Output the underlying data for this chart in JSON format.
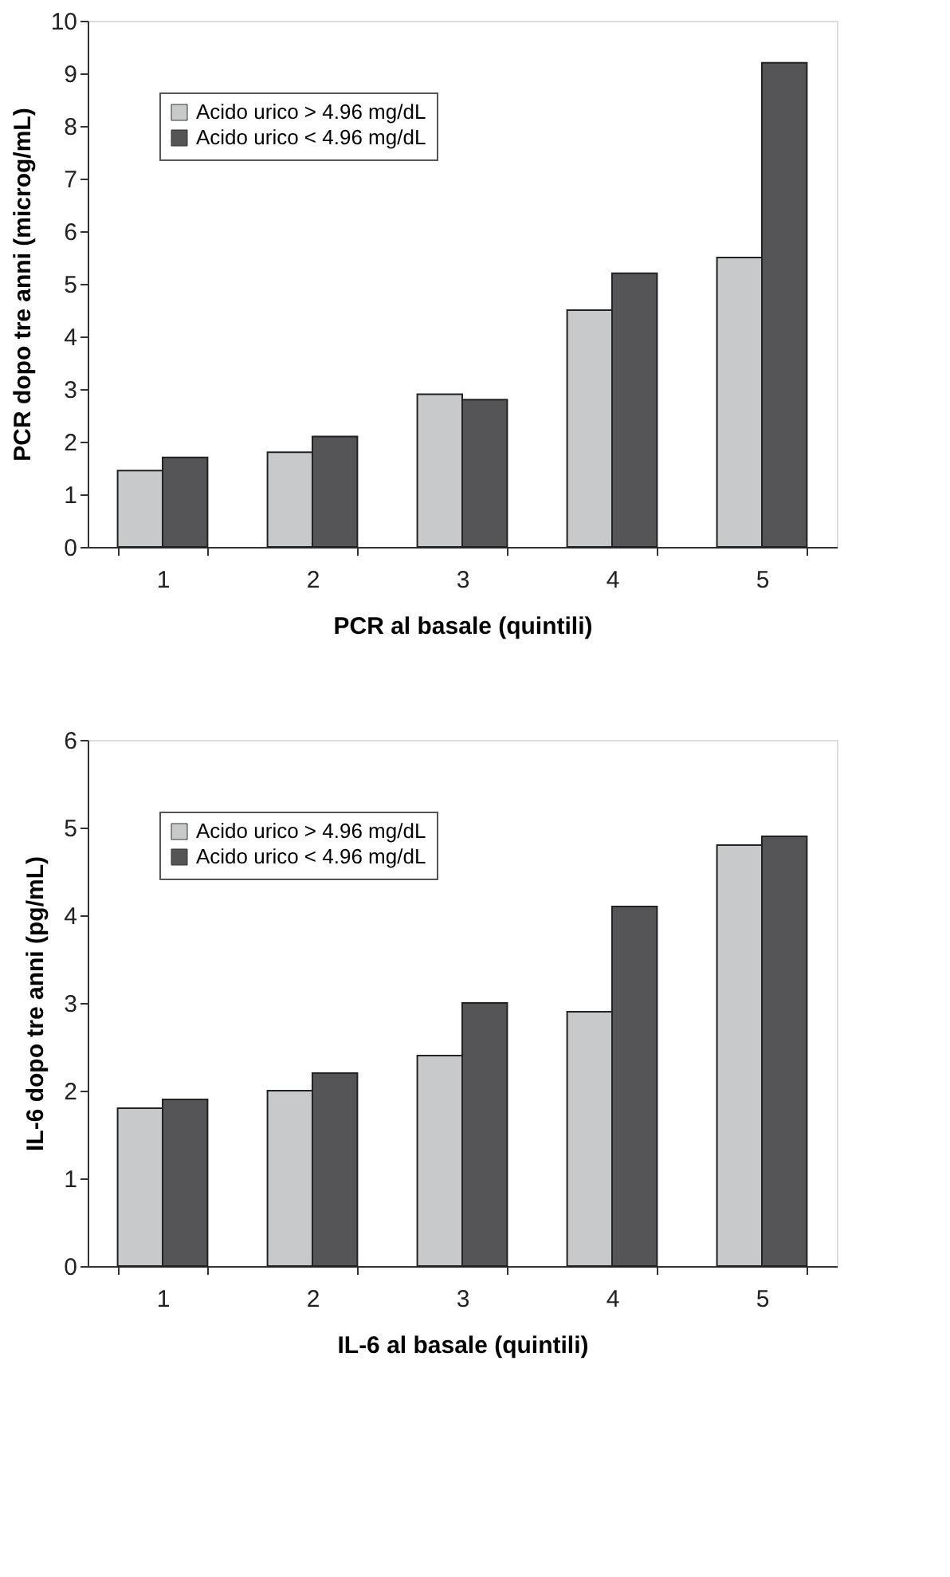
{
  "chart_data": [
    {
      "type": "bar",
      "xlabel": "PCR al basale (quintili)",
      "ylabel": "PCR dopo tre anni (microg/mL)",
      "categories": [
        "1",
        "2",
        "3",
        "4",
        "5"
      ],
      "ylim": [
        0,
        10
      ],
      "yticks": [
        0,
        1,
        2,
        3,
        4,
        5,
        6,
        7,
        8,
        9,
        10
      ],
      "legend": "top left",
      "grid": false,
      "series": [
        {
          "name": "Acido urico > 4.96 mg/dL",
          "color": "#c8c9cb",
          "values": [
            1.45,
            1.8,
            2.9,
            4.5,
            5.5
          ]
        },
        {
          "name": "Acido urico < 4.96 mg/dL",
          "color": "#555557",
          "values": [
            1.7,
            2.1,
            2.8,
            5.2,
            9.2
          ]
        }
      ]
    },
    {
      "type": "bar",
      "xlabel": "IL-6 al basale (quintili)",
      "ylabel": "IL-6 dopo tre anni (pg/mL)",
      "categories": [
        "1",
        "2",
        "3",
        "4",
        "5"
      ],
      "ylim": [
        0,
        6
      ],
      "yticks": [
        0,
        1,
        2,
        3,
        4,
        5,
        6
      ],
      "legend": "top left",
      "grid": false,
      "series": [
        {
          "name": "Acido urico > 4.96 mg/dL",
          "color": "#c8c9cb",
          "values": [
            1.8,
            2.0,
            2.4,
            2.9,
            4.8
          ]
        },
        {
          "name": "Acido urico < 4.96 mg/dL",
          "color": "#555557",
          "values": [
            1.9,
            2.2,
            3.0,
            4.1,
            4.9
          ]
        }
      ]
    }
  ]
}
